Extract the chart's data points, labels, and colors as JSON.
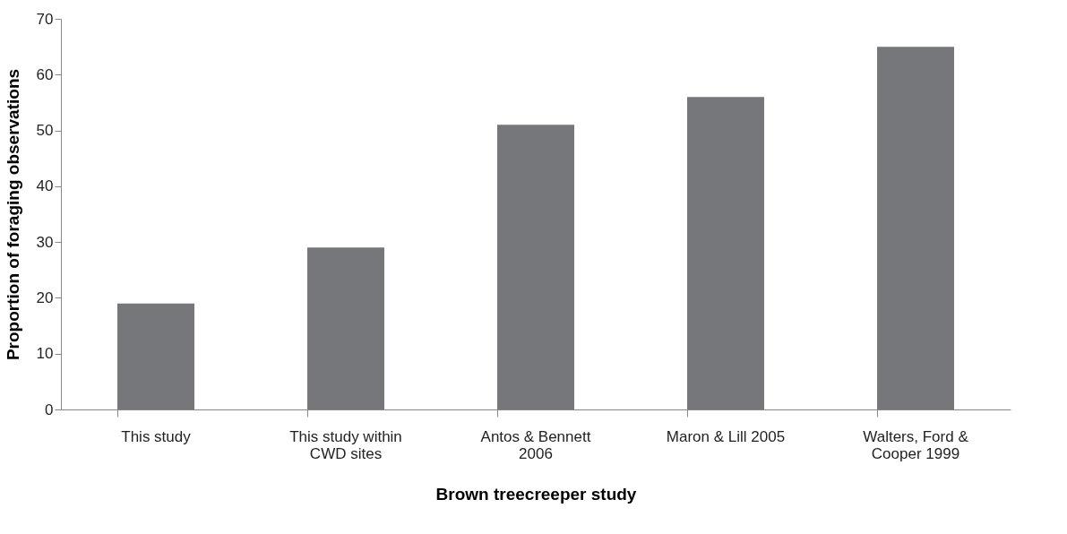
{
  "chart_data": {
    "type": "bar",
    "xlabel": "Brown treecreeper study",
    "ylabel": "Proportion of foraging observations",
    "categories": [
      "This study",
      "This study within CWD sites",
      "Antos & Bennett 2006",
      "Maron & Lill 2005",
      "Walters, Ford & Cooper 1999"
    ],
    "values": [
      19,
      29,
      51,
      56,
      65
    ],
    "color": "#76777b",
    "ylim": [
      0,
      70
    ],
    "yticks": [
      0,
      10,
      20,
      30,
      40,
      50,
      60,
      70
    ],
    "grid": false
  }
}
